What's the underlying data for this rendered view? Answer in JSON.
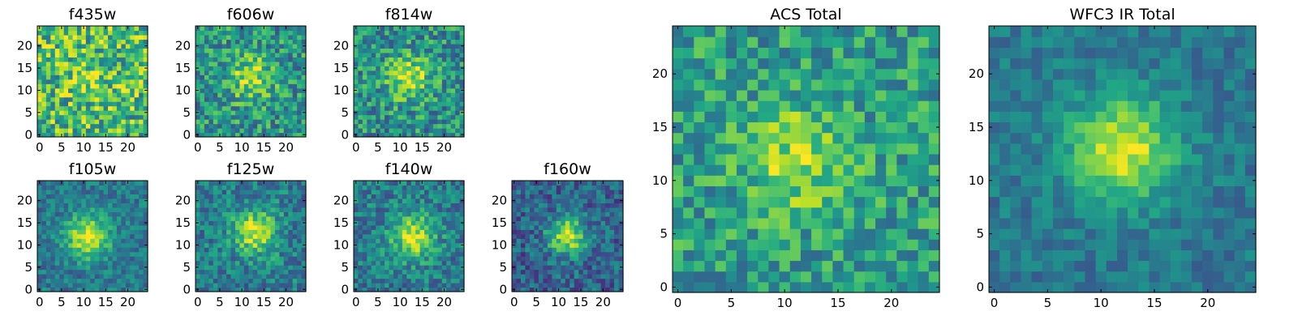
{
  "chart_data": [
    {
      "type": "heatmap",
      "title": "f435w",
      "size": 25,
      "colormap": "viridis",
      "blob": {
        "cx": 11,
        "cy": 13,
        "sigma": 3.0,
        "amp": 0.15
      },
      "base": 0.68,
      "noise": 0.32,
      "seed": 11,
      "x_ticks": [
        "0",
        "5",
        "10",
        "15",
        "20"
      ],
      "y_ticks": [
        "0",
        "5",
        "10",
        "15",
        "20"
      ],
      "xlim": [
        0,
        25
      ],
      "ylim": [
        0,
        25
      ]
    },
    {
      "type": "heatmap",
      "title": "f606w",
      "size": 25,
      "colormap": "viridis",
      "blob": {
        "cx": 12,
        "cy": 13,
        "sigma": 3.5,
        "amp": 0.35
      },
      "base": 0.52,
      "noise": 0.26,
      "seed": 23,
      "x_ticks": [
        "0",
        "5",
        "10",
        "15",
        "20"
      ],
      "y_ticks": [
        "0",
        "5",
        "10",
        "15",
        "20"
      ],
      "xlim": [
        0,
        25
      ],
      "ylim": [
        0,
        25
      ]
    },
    {
      "type": "heatmap",
      "title": "f814w",
      "size": 25,
      "colormap": "viridis",
      "blob": {
        "cx": 12,
        "cy": 13,
        "sigma": 3.5,
        "amp": 0.4
      },
      "base": 0.5,
      "noise": 0.26,
      "seed": 37,
      "x_ticks": [
        "0",
        "5",
        "10",
        "15",
        "20"
      ],
      "y_ticks": [
        "0",
        "5",
        "10",
        "15",
        "20"
      ],
      "xlim": [
        0,
        25
      ],
      "ylim": [
        0,
        25
      ]
    },
    {
      "type": "heatmap",
      "title": "f105w",
      "size": 25,
      "colormap": "viridis",
      "blob": {
        "cx": 11,
        "cy": 12,
        "sigma": 3.5,
        "amp": 0.55
      },
      "base": 0.4,
      "noise": 0.16,
      "seed": 41,
      "x_ticks": [
        "0",
        "5",
        "10",
        "15",
        "20"
      ],
      "y_ticks": [
        "0",
        "5",
        "10",
        "15",
        "20"
      ],
      "xlim": [
        0,
        25
      ],
      "ylim": [
        0,
        25
      ]
    },
    {
      "type": "heatmap",
      "title": "f125w",
      "size": 25,
      "colormap": "viridis",
      "blob": {
        "cx": 13,
        "cy": 13,
        "sigma": 3.5,
        "amp": 0.5
      },
      "base": 0.42,
      "noise": 0.2,
      "seed": 53,
      "x_ticks": [
        "0",
        "5",
        "10",
        "15",
        "20"
      ],
      "y_ticks": [
        "0",
        "5",
        "10",
        "15",
        "20"
      ],
      "xlim": [
        0,
        25
      ],
      "ylim": [
        0,
        25
      ]
    },
    {
      "type": "heatmap",
      "title": "f140w",
      "size": 25,
      "colormap": "viridis",
      "blob": {
        "cx": 13,
        "cy": 12,
        "sigma": 3.5,
        "amp": 0.5
      },
      "base": 0.42,
      "noise": 0.2,
      "seed": 67,
      "x_ticks": [
        "0",
        "5",
        "10",
        "15",
        "20"
      ],
      "y_ticks": [
        "0",
        "5",
        "10",
        "15",
        "20"
      ],
      "xlim": [
        0,
        25
      ],
      "ylim": [
        0,
        25
      ]
    },
    {
      "type": "heatmap",
      "title": "f160w",
      "size": 25,
      "colormap": "viridis",
      "blob": {
        "cx": 12,
        "cy": 12,
        "sigma": 3.0,
        "amp": 0.6
      },
      "base": 0.32,
      "noise": 0.2,
      "seed": 79,
      "x_ticks": [
        "0",
        "5",
        "10",
        "15",
        "20"
      ],
      "y_ticks": [
        "0",
        "5",
        "10",
        "15",
        "20"
      ],
      "xlim": [
        0,
        25
      ],
      "ylim": [
        0,
        25
      ]
    },
    {
      "type": "heatmap",
      "title": "ACS Total",
      "size": 25,
      "colormap": "viridis",
      "blob": {
        "cx": 11,
        "cy": 12,
        "sigma": 3.5,
        "amp": 0.3
      },
      "base": 0.55,
      "noise": 0.22,
      "seed": 97,
      "x_ticks": [
        "0",
        "5",
        "10",
        "15",
        "20"
      ],
      "y_ticks": [
        "0",
        "5",
        "10",
        "15",
        "20"
      ],
      "xlim": [
        0,
        25
      ],
      "ylim": [
        0,
        25
      ]
    },
    {
      "type": "heatmap",
      "title": "WFC3 IR Total",
      "size": 25,
      "colormap": "viridis",
      "blob": {
        "cx": 12,
        "cy": 13,
        "sigma": 3.5,
        "amp": 0.55
      },
      "base": 0.4,
      "noise": 0.12,
      "seed": 131,
      "x_ticks": [
        "0",
        "5",
        "10",
        "15",
        "20"
      ],
      "y_ticks": [
        "0",
        "5",
        "10",
        "15",
        "20"
      ],
      "xlim": [
        0,
        25
      ],
      "ylim": [
        0,
        25
      ]
    }
  ]
}
